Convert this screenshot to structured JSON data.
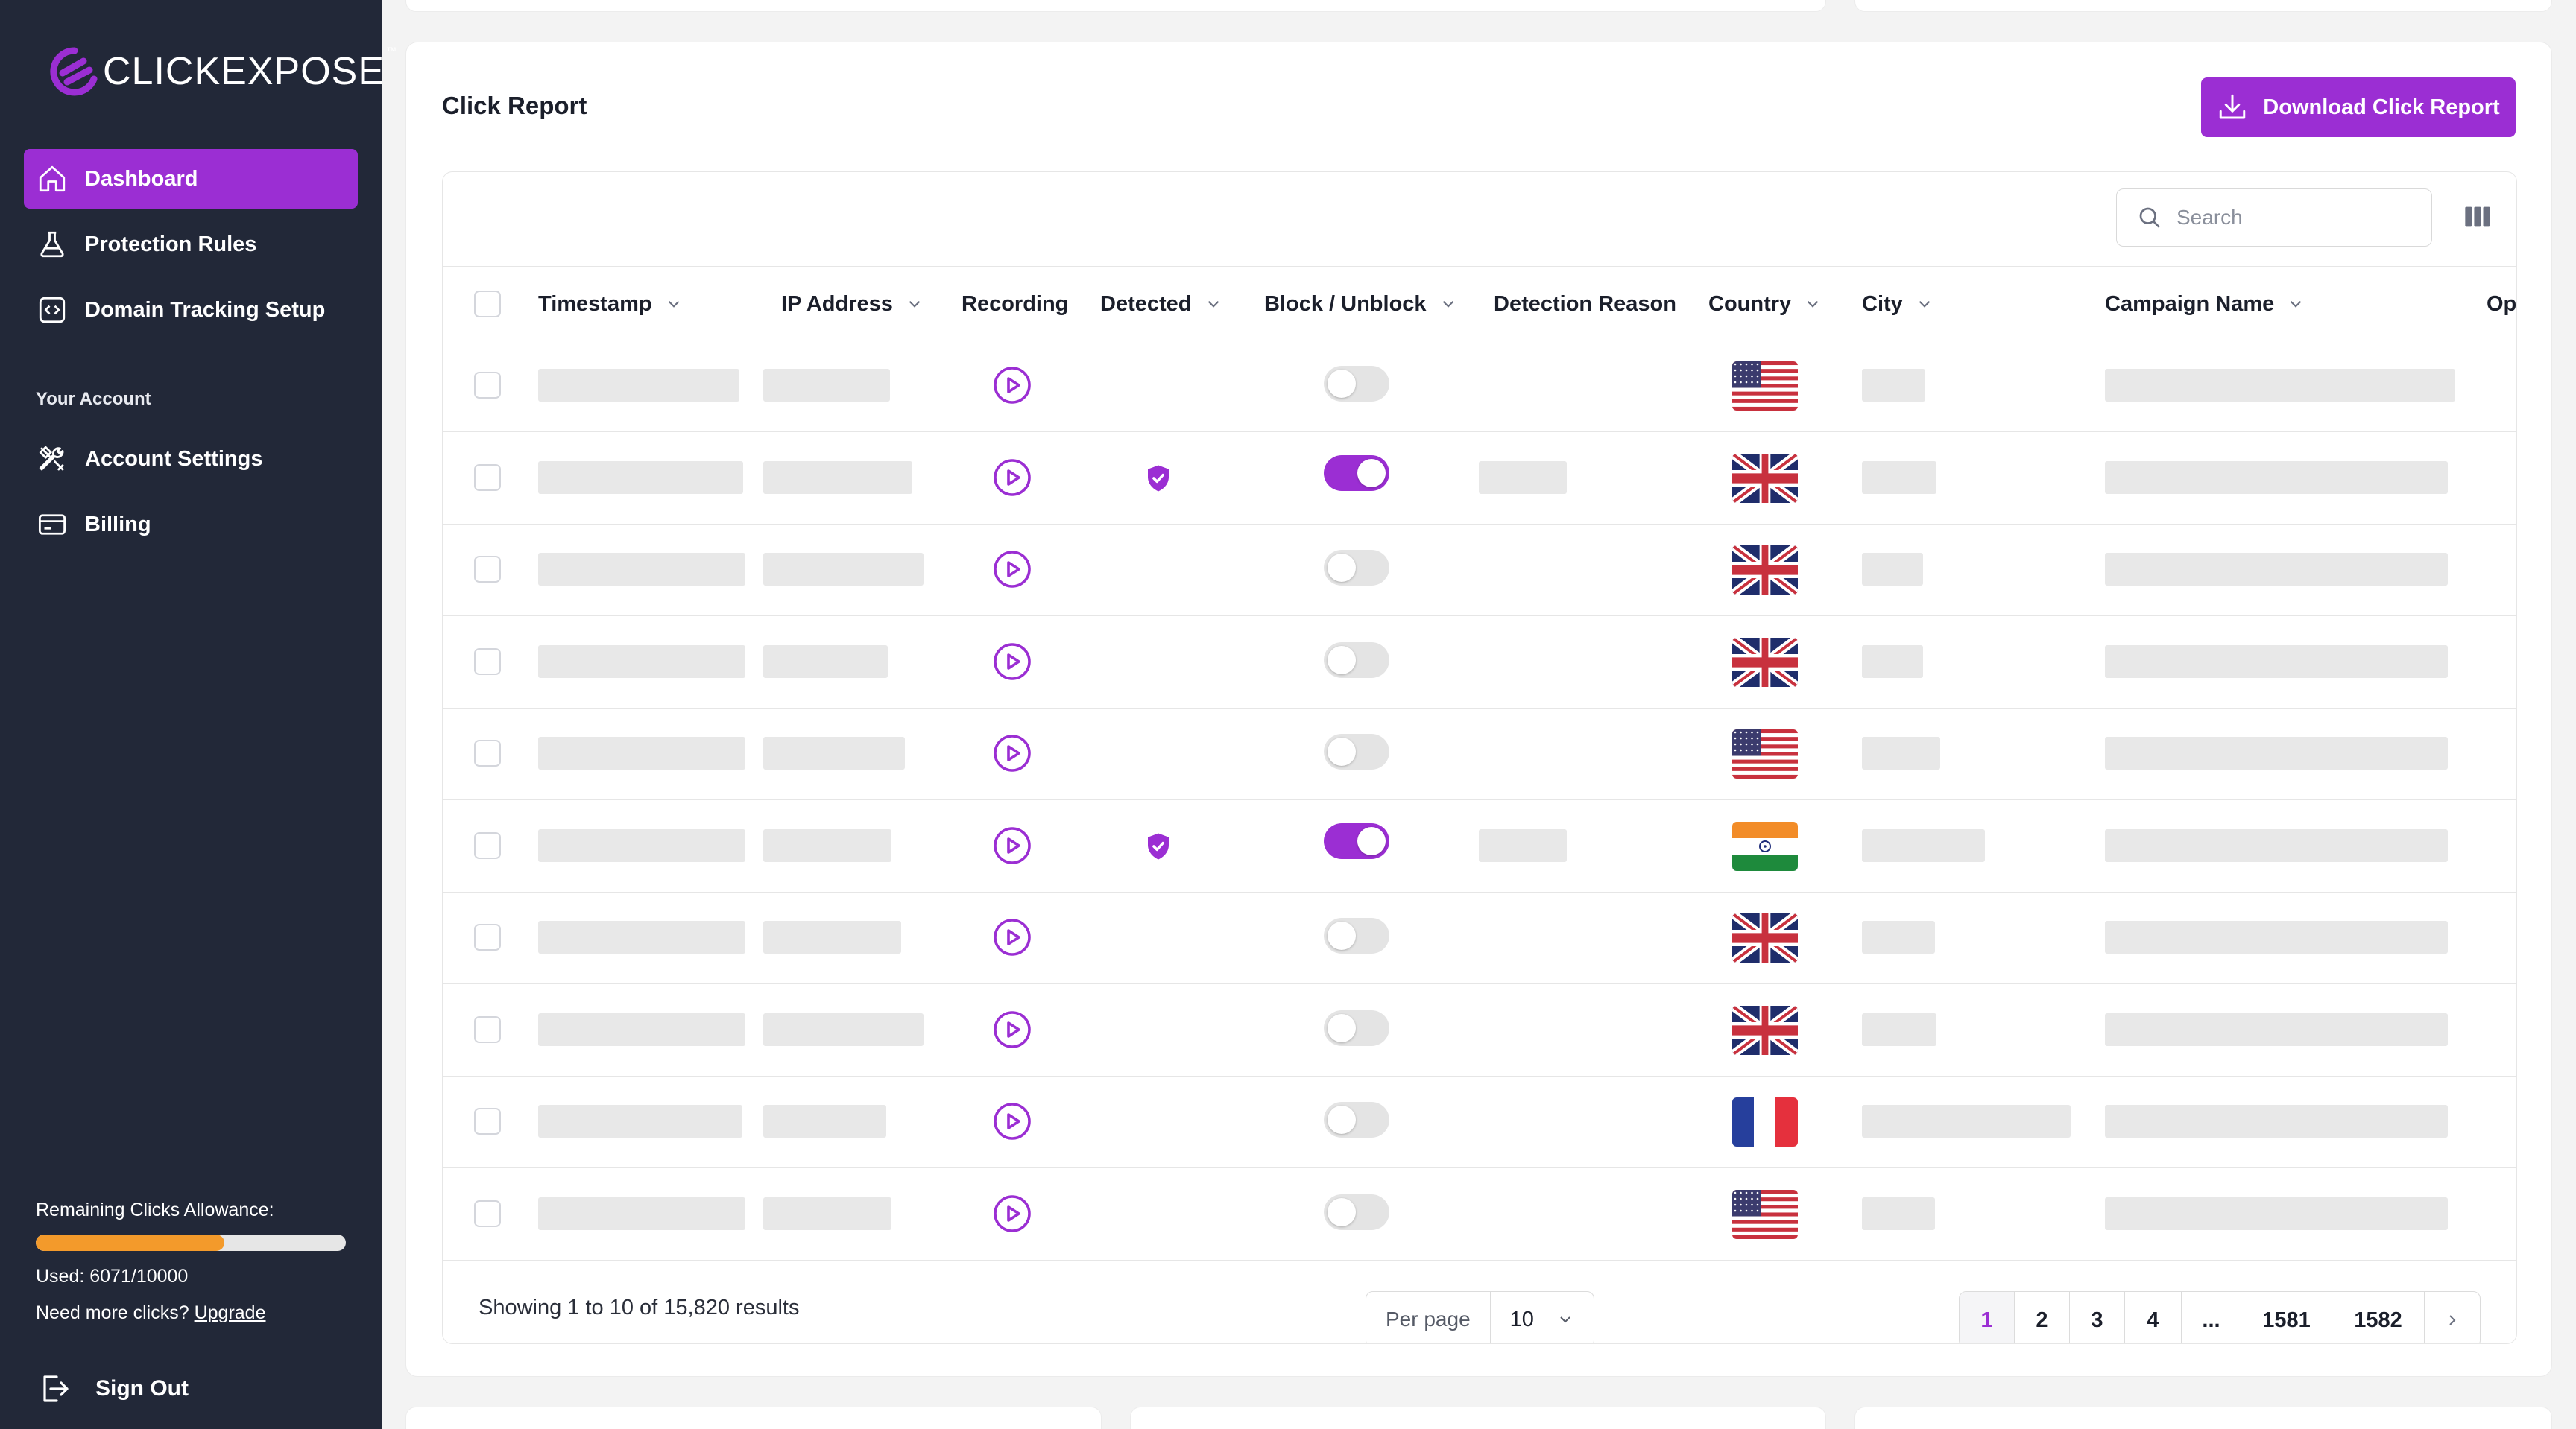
{
  "brand": {
    "name_part1": "CLICK",
    "name_part2": "EXPOSE",
    "tm": "™"
  },
  "sidebar": {
    "nav": [
      {
        "label": "Dashboard",
        "icon": "home-icon",
        "active": true
      },
      {
        "label": "Protection Rules",
        "icon": "flask-icon",
        "active": false
      },
      {
        "label": "Domain Tracking Setup",
        "icon": "code-icon",
        "active": false
      }
    ],
    "section_label": "Your Account",
    "account_nav": [
      {
        "label": "Account Settings",
        "icon": "tools-icon"
      },
      {
        "label": "Billing",
        "icon": "credit-card-icon"
      }
    ],
    "allowance": {
      "label": "Remaining Clicks Allowance:",
      "used_label": "Used: 6071/10000",
      "used": 6071,
      "total": 10000,
      "more_text": "Need more clicks?",
      "upgrade_label": "Upgrade"
    },
    "sign_out": "Sign Out"
  },
  "report": {
    "title": "Click Report",
    "download_label": "Download Click Report",
    "search_placeholder": "Search",
    "columns": [
      "Timestamp",
      "IP Address",
      "Recording",
      "Detected",
      "Block / Unblock",
      "Detection Reason",
      "Country",
      "City",
      "Campaign Name",
      "Ope"
    ],
    "rows": [
      {
        "detected": false,
        "blocked": false,
        "country": "us"
      },
      {
        "detected": true,
        "blocked": true,
        "country": "gb"
      },
      {
        "detected": false,
        "blocked": false,
        "country": "gb"
      },
      {
        "detected": false,
        "blocked": false,
        "country": "gb"
      },
      {
        "detected": false,
        "blocked": false,
        "country": "us"
      },
      {
        "detected": true,
        "blocked": true,
        "country": "in"
      },
      {
        "detected": false,
        "blocked": false,
        "country": "gb"
      },
      {
        "detected": false,
        "blocked": false,
        "country": "gb"
      },
      {
        "detected": false,
        "blocked": false,
        "country": "fr"
      },
      {
        "detected": false,
        "blocked": false,
        "country": "us"
      }
    ],
    "showing": "Showing 1 to 10 of 15,820 results",
    "per_page_label": "Per page",
    "per_page_value": "10",
    "pages": [
      "1",
      "2",
      "3",
      "4",
      "...",
      "1581",
      "1582"
    ],
    "current_page": "1"
  },
  "colors": {
    "accent": "#9b2ed3",
    "sidebar": "#222838",
    "progress": "#f39a2b"
  }
}
